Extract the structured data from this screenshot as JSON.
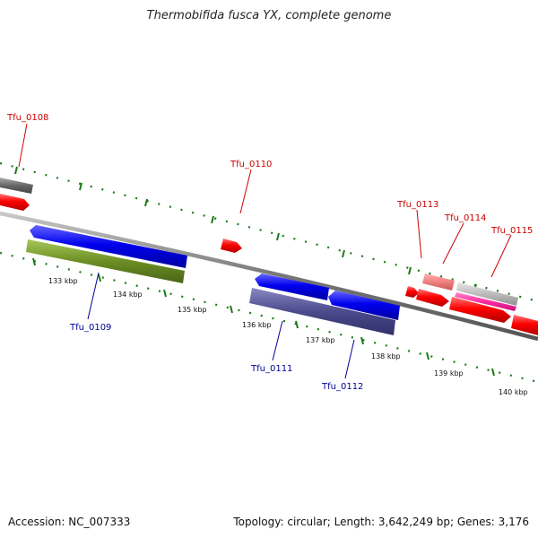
{
  "title": "Thermobifida fusca YX, complete genome",
  "footer": {
    "accession": "Accession: NC_007333",
    "stats": "Topology: circular; Length: 3,642,249 bp; Genes: 3,176"
  },
  "scale_labels": [
    "133 kbp",
    "134 kbp",
    "135 kbp",
    "136 kbp",
    "137 kbp",
    "138 kbp",
    "139 kbp",
    "140 kbp"
  ],
  "gene_labels": {
    "tfu_0108": "Tfu_0108",
    "tfu_0109": "Tfu_0109",
    "tfu_0110": "Tfu_0110",
    "tfu_0111": "Tfu_0111",
    "tfu_0112": "Tfu_0112",
    "tfu_0113": "Tfu_0113",
    "tfu_0114": "Tfu_0114",
    "tfu_0115": "Tfu_0115"
  },
  "colors": {
    "forward_label": "#cc0000",
    "reverse_label": "#000099",
    "forward_gene": "#ff0000",
    "reverse_gene": "#0000ee",
    "ruler": "#1a7a1a",
    "backbone": "#888888",
    "cog_olive": "#6b8e23",
    "cog_purple": "#4b4a8c",
    "cog_pink": "#ff2aa0",
    "cog_grey": "#777777",
    "cog_salmon": "#f08080",
    "cog_silver": "#bbbbbb"
  }
}
